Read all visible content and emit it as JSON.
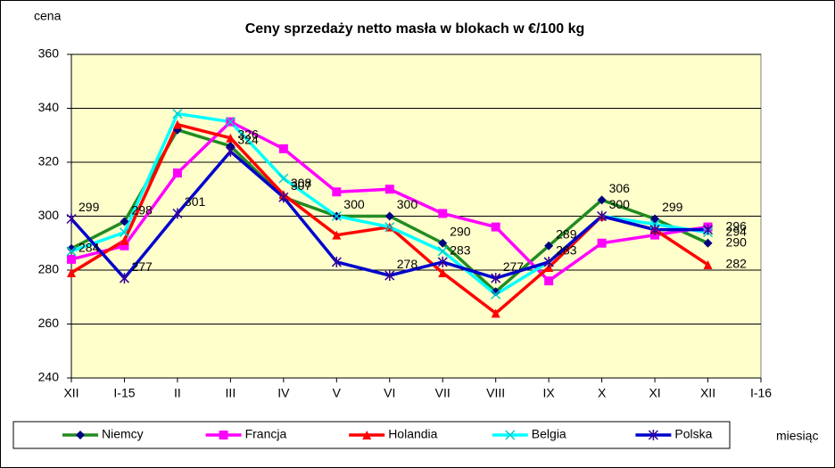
{
  "chart_data": {
    "type": "line",
    "title": "Ceny sprzedaży netto masła w blokach w €/100 kg",
    "y_label": "cena",
    "x_label": "miesiąc",
    "categories": [
      "XII",
      "I-15",
      "II",
      "III",
      "IV",
      "V",
      "VI",
      "VII",
      "VIII",
      "IX",
      "X",
      "XI",
      "XII",
      "I-16"
    ],
    "ylim": [
      240,
      360
    ],
    "yticks": [
      240,
      260,
      280,
      300,
      320,
      340,
      360
    ],
    "grid": true,
    "background": "#FFFFCC",
    "series": [
      {
        "name": "Niemcy",
        "color": "#228B22",
        "marker": "diamond",
        "marker_color": "#000080",
        "values": [
          288,
          298,
          332,
          326,
          307,
          300,
          300,
          290,
          272,
          289,
          306,
          299,
          290,
          null
        ],
        "value_labels": [
          null,
          "298",
          null,
          "326",
          "307",
          null,
          "300",
          "290",
          null,
          "289",
          "306",
          "299",
          "290",
          null
        ]
      },
      {
        "name": "Francja",
        "color": "#FF00FF",
        "marker": "square",
        "marker_color": "#FF00FF",
        "values": [
          284,
          289,
          316,
          335,
          325,
          309,
          310,
          301,
          296,
          276,
          290,
          293,
          296,
          null
        ],
        "value_labels": [
          "284",
          null,
          null,
          null,
          null,
          null,
          null,
          null,
          null,
          null,
          null,
          null,
          "296",
          null
        ]
      },
      {
        "name": "Holandia",
        "color": "#FF0000",
        "marker": "triangle",
        "marker_color": "#FF0000",
        "values": [
          279,
          291,
          334,
          329,
          308,
          293,
          296,
          279,
          264,
          281,
          300,
          295,
          282,
          null
        ],
        "value_labels": [
          null,
          null,
          null,
          null,
          "308",
          null,
          null,
          null,
          null,
          null,
          null,
          null,
          "282",
          null
        ]
      },
      {
        "name": "Belgia",
        "color": "#00FFFF",
        "marker": "x",
        "marker_color": "#00CCCC",
        "values": [
          287,
          294,
          338,
          335,
          314,
          300,
          296,
          287,
          271,
          283,
          300,
          297,
          294,
          null
        ],
        "value_labels": [
          null,
          null,
          null,
          null,
          null,
          "300",
          null,
          null,
          null,
          null,
          null,
          null,
          "294",
          null
        ]
      },
      {
        "name": "Polska",
        "color": "#0000CC",
        "marker": "asterisk",
        "marker_color": "#330099",
        "values": [
          299,
          277,
          301,
          324,
          307,
          283,
          278,
          283,
          277,
          283,
          300,
          295,
          295,
          null
        ],
        "value_labels": [
          "299",
          "277",
          "301",
          "324",
          null,
          null,
          "278",
          "283",
          "277",
          "283",
          "300",
          null,
          null,
          null
        ]
      }
    ]
  }
}
